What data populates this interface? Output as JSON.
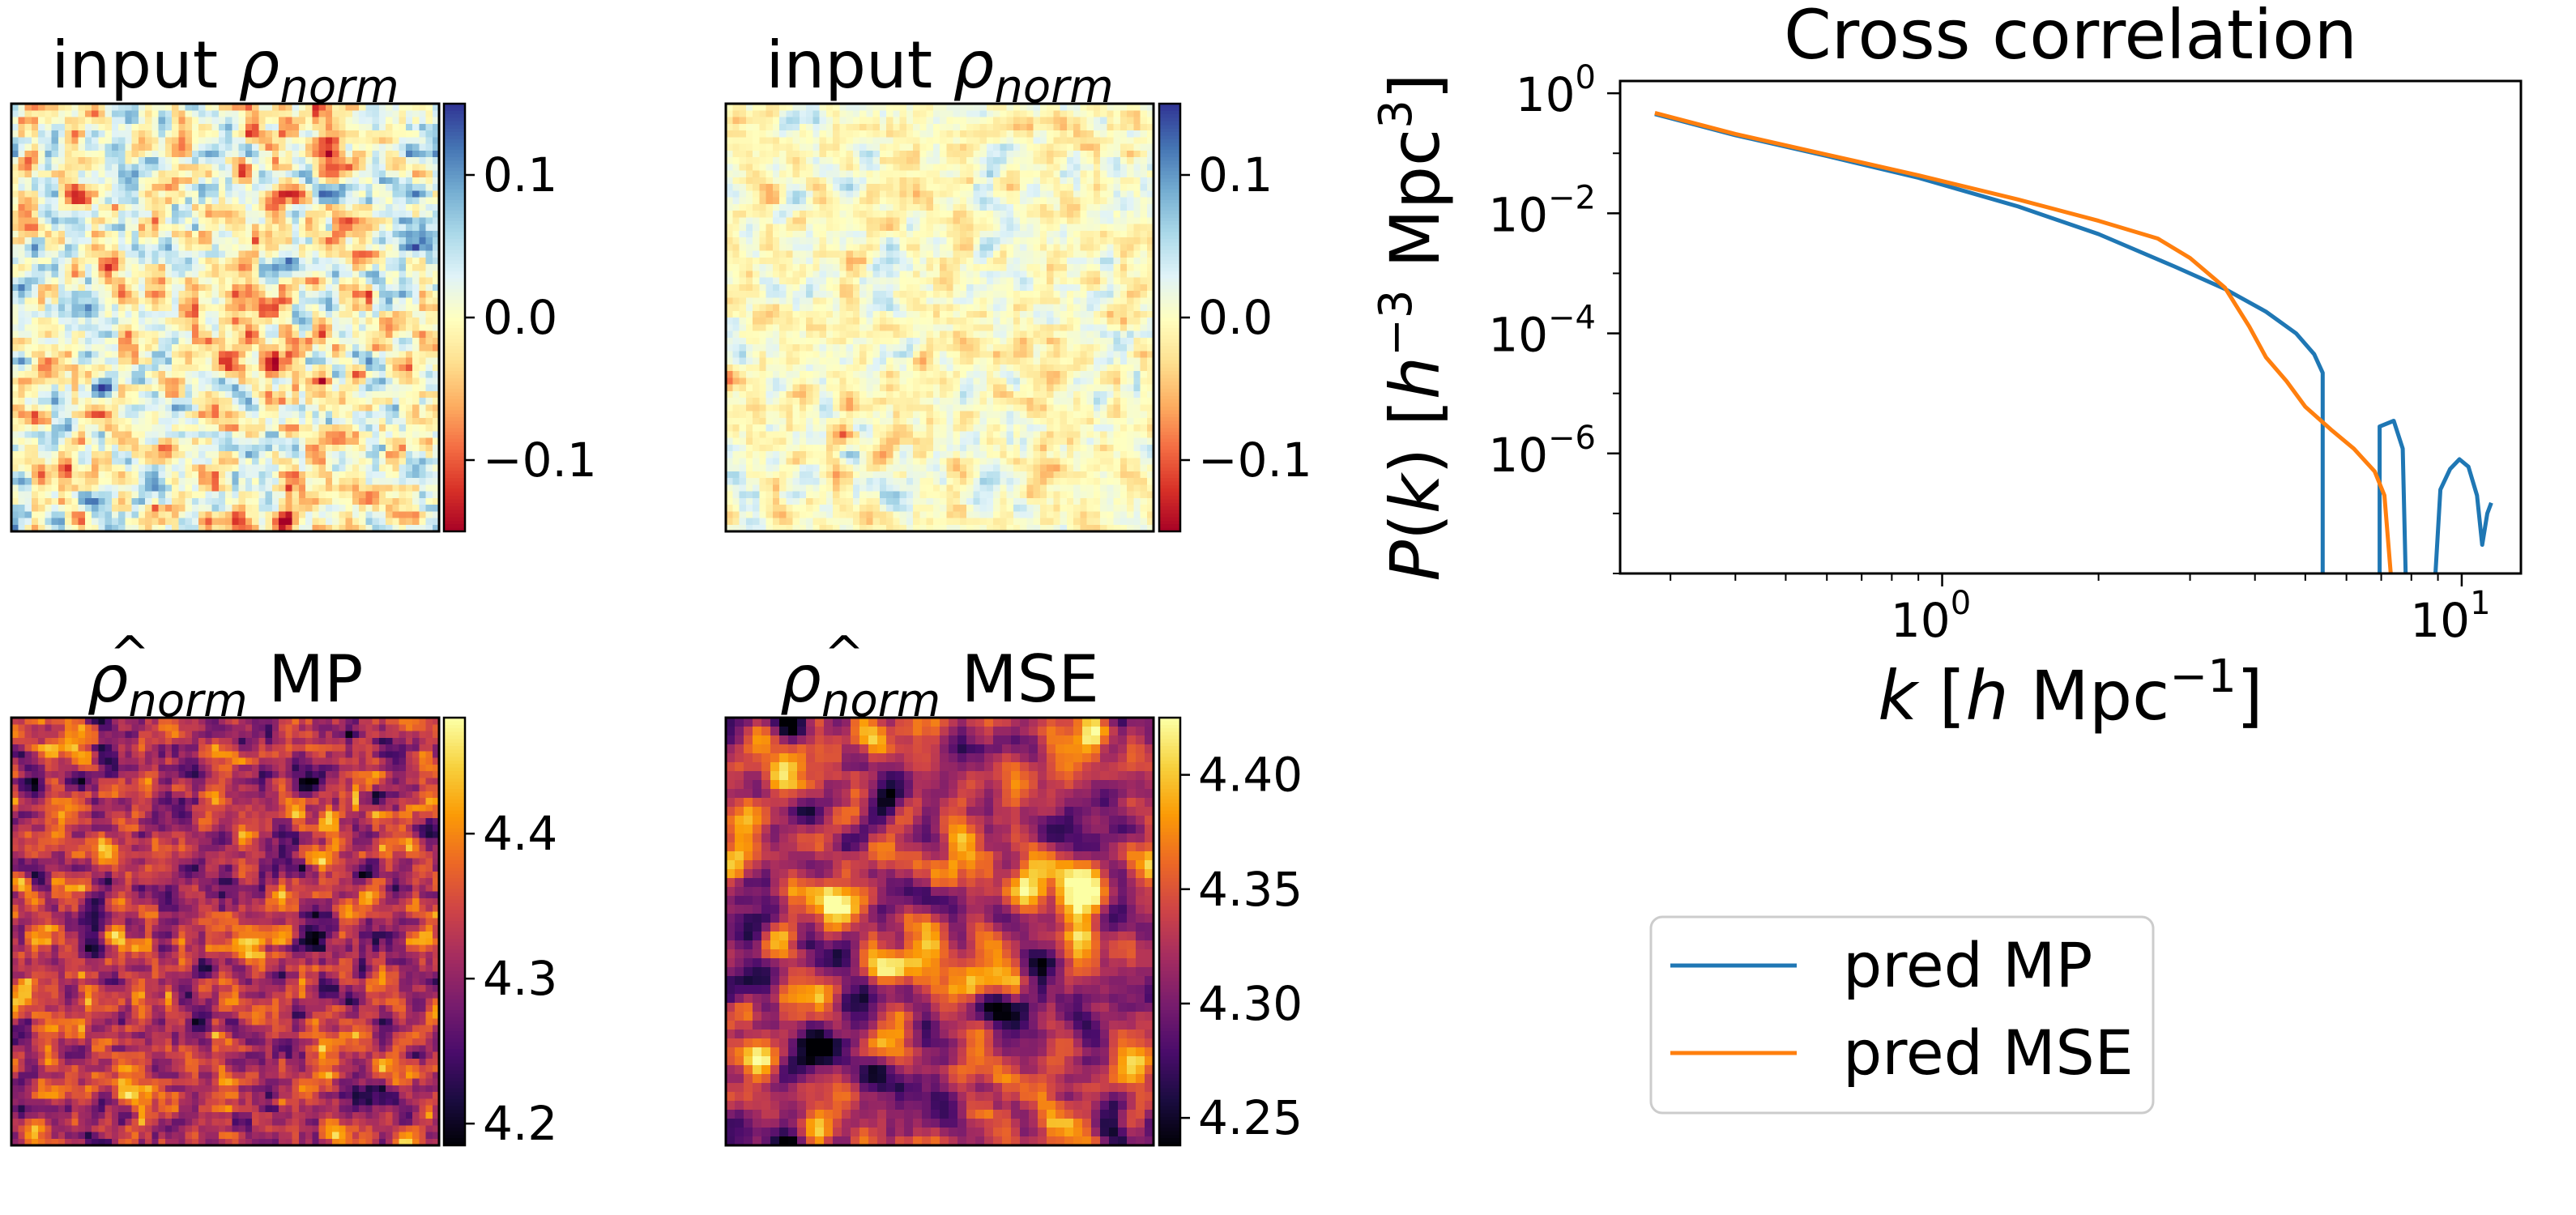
{
  "panels": [
    {
      "title": "input ρnorm",
      "title_main": "input ",
      "title_symbol": "ρ",
      "title_sub": "norm",
      "title_suffix": "",
      "hat": false,
      "colormap": "RdYlBu",
      "colorbar": {
        "min": -0.15,
        "max": 0.15,
        "ticks": [
          "0.1",
          "0.0",
          "−0.1"
        ],
        "tick_values": [
          0.1,
          0.0,
          -0.1
        ]
      }
    },
    {
      "title": "input ρnorm",
      "title_main": "input ",
      "title_symbol": "ρ",
      "title_sub": "norm",
      "title_suffix": "",
      "hat": false,
      "colormap": "RdYlBu",
      "colorbar": {
        "min": -0.15,
        "max": 0.15,
        "ticks": [
          "0.1",
          "0.0",
          "−0.1"
        ],
        "tick_values": [
          0.1,
          0.0,
          -0.1
        ]
      }
    },
    {
      "title": "ρ̂norm MP",
      "title_main": "",
      "title_symbol": "ρ",
      "title_sub": "norm",
      "title_suffix": " MP",
      "hat": true,
      "colormap": "inferno",
      "colorbar": {
        "min": 4.185,
        "max": 4.48,
        "ticks": [
          "4.4",
          "4.3",
          "4.2"
        ],
        "tick_values": [
          4.4,
          4.3,
          4.2
        ]
      }
    },
    {
      "title": "ρ̂norm MSE",
      "title_main": "",
      "title_symbol": "ρ",
      "title_sub": "norm",
      "title_suffix": " MSE",
      "hat": true,
      "colormap": "inferno",
      "colorbar": {
        "min": 4.238,
        "max": 4.425,
        "ticks": [
          "4.40",
          "4.35",
          "4.30",
          "4.25"
        ],
        "tick_values": [
          4.4,
          4.35,
          4.3,
          4.25
        ]
      }
    }
  ],
  "chart_data": {
    "type": "line",
    "title": "Cross correlation",
    "xlabel": "k [h Mpc⁻¹]",
    "ylabel": "P(k) [h⁻³ Mpc³]",
    "xscale": "log",
    "yscale": "log",
    "xlim": [
      0.24,
      13.0
    ],
    "ylim": [
      1e-08,
      1.6
    ],
    "xticks": [
      {
        "value": 1.0,
        "base": "10",
        "exp": "0"
      },
      {
        "value": 10.0,
        "base": "10",
        "exp": "1"
      }
    ],
    "yticks": [
      {
        "value": 1.0,
        "base": "10",
        "exp": "0"
      },
      {
        "value": 0.01,
        "base": "10",
        "exp": "−2"
      },
      {
        "value": 0.0001,
        "base": "10",
        "exp": "−4"
      },
      {
        "value": 1e-06,
        "base": "10",
        "exp": "−6"
      }
    ],
    "legend_position": "lower-right",
    "series": [
      {
        "name": "pred MP",
        "color": "#1f77b4",
        "points": [
          [
            0.28,
            0.45
          ],
          [
            0.4,
            0.2
          ],
          [
            0.6,
            0.09
          ],
          [
            0.9,
            0.039
          ],
          [
            1.4,
            0.013
          ],
          [
            2.0,
            0.0045
          ],
          [
            2.8,
            0.0013
          ],
          [
            3.5,
            0.00055
          ],
          [
            4.2,
            0.00023
          ],
          [
            4.8,
            0.0001
          ],
          [
            5.2,
            4.5e-05
          ],
          [
            5.4,
            2.2e-05
          ],
          [
            5.4,
            1e-08
          ],
          null,
          [
            6.95,
            1e-08
          ],
          [
            6.95,
            2.8e-06
          ],
          [
            7.4,
            3.5e-06
          ],
          [
            7.7,
            1.2e-06
          ],
          [
            7.8,
            1e-08
          ],
          null,
          [
            8.9,
            1e-08
          ],
          [
            9.1,
            2.5e-07
          ],
          [
            9.5,
            5.5e-07
          ],
          [
            9.9,
            8e-07
          ],
          [
            10.3,
            6e-07
          ],
          [
            10.7,
            2e-07
          ],
          [
            10.95,
            3e-08
          ],
          [
            11.2,
            1e-07
          ],
          [
            11.4,
            1.5e-07
          ]
        ]
      },
      {
        "name": "pred MSE",
        "color": "#ff7f0e",
        "points": [
          [
            0.28,
            0.47
          ],
          [
            0.4,
            0.21
          ],
          [
            0.6,
            0.095
          ],
          [
            0.9,
            0.043
          ],
          [
            1.4,
            0.017
          ],
          [
            2.0,
            0.0075
          ],
          [
            2.6,
            0.0038
          ],
          [
            3.0,
            0.0018
          ],
          [
            3.5,
            0.00058
          ],
          [
            3.9,
            0.00013
          ],
          [
            4.2,
            4e-05
          ],
          [
            4.6,
            1.6e-05
          ],
          [
            5.0,
            6e-06
          ],
          [
            5.6,
            2.5e-06
          ],
          [
            6.2,
            1.2e-06
          ],
          [
            6.8,
            5e-07
          ],
          [
            7.1,
            2e-07
          ],
          [
            7.3,
            1e-08
          ]
        ]
      }
    ]
  }
}
